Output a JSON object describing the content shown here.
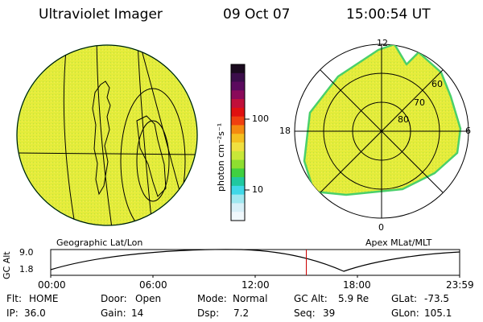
{
  "header": {
    "instrument": "Ultraviolet Imager",
    "date": "09 Oct 07",
    "time": "15:00:54 UT"
  },
  "colors": {
    "aurora_fill": "#e6ee3a",
    "aurora_edge": "#4ad06a",
    "grid_line": "#000000",
    "timeline_marker": "#cc0000"
  },
  "colorbar": {
    "unit_label": "photon cm⁻²s⁻¹",
    "ticks": [
      "100",
      "10"
    ],
    "scale": "log",
    "colors_top_to_bottom": [
      "#1a0a1e",
      "#3b0d4a",
      "#5b0a5e",
      "#8a0a5a",
      "#c0103a",
      "#e01010",
      "#f04010",
      "#f48a10",
      "#f4c020",
      "#f0e040",
      "#c8e838",
      "#8ede30",
      "#40d040",
      "#20c8a0",
      "#40d8e8",
      "#a0e8f0",
      "#d8f0f8",
      "#f0f8fc"
    ]
  },
  "left_map": {
    "caption": "Geographic Lat/Lon"
  },
  "polar_map": {
    "caption": "Apex MLat/MLT",
    "mlt_labels": {
      "top": "12",
      "left": "18",
      "right": "6",
      "bottom": "0"
    },
    "lat_labels": [
      "60",
      "70",
      "80"
    ]
  },
  "timeline": {
    "axis_title": "GC Alt",
    "y_ticks": [
      "9.0",
      "1.8"
    ],
    "x_ticks": [
      "00:00",
      "06:00",
      "12:00",
      "18:00",
      "23:59"
    ],
    "current_time_fraction": 0.625
  },
  "status": {
    "row1": [
      {
        "label": "Flt:",
        "value": "HOME"
      },
      {
        "label": "Door:",
        "value": "Open"
      },
      {
        "label": "Mode:",
        "value": "Normal"
      },
      {
        "label": "GC Alt:",
        "value": "5.9 Re"
      },
      {
        "label": "GLat:",
        "value": "-73.5"
      }
    ],
    "row2": [
      {
        "label": "IP:",
        "value": "36.0"
      },
      {
        "label": "Gain:",
        "value": "14"
      },
      {
        "label": "Dsp:",
        "value": "7.2"
      },
      {
        "label": "Seq:",
        "value": "39"
      },
      {
        "label": "GLon:",
        "value": "105.1"
      }
    ]
  }
}
